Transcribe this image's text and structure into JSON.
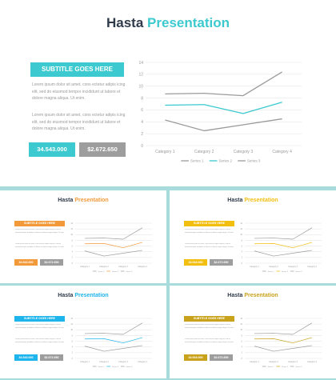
{
  "main": {
    "title_word1": "Hasta",
    "title_word2": "Presentation",
    "subtitle": "SUBTITLE GOES HERE",
    "paragraph1": "Lorem ipsum dolor sit amet, cons ectetur adipis icing elit, sed do eiusmod tempor incididunt ut labore et dolore magna aliqua. Ut enim.",
    "paragraph2": "Lorem ipsum dolor sit amet, cons ectetur adipis icing elit, sed do eiusmod tempor incididunt ut labore et dolore magna aliqua. Ut enim.",
    "stat1": "34.543.000",
    "stat2": "$2.672.650",
    "accent": "#3cc9cf"
  },
  "thumbs": [
    {
      "title_word1": "Hasta",
      "title_word2": "Presentation",
      "subtitle": "SUBTITLE GOES HERE",
      "stat1": "34.543.000",
      "stat2": "$2.672.650",
      "accent": "#f29a3a"
    },
    {
      "title_word1": "Hasta",
      "title_word2": "Presentation",
      "subtitle": "SUBTITLE GOES HERE",
      "stat1": "34.543.000",
      "stat2": "$2.672.650",
      "accent": "#f2be10"
    },
    {
      "title_word1": "Hasta",
      "title_word2": "Presentation",
      "subtitle": "SUBTITLE GOES HERE",
      "stat1": "34.543.000",
      "stat2": "$2.672.650",
      "accent": "#1eb4ec"
    },
    {
      "title_word1": "Hasta",
      "title_word2": "Presentation",
      "subtitle": "SUBTITLE GOES HERE",
      "stat1": "34.543.000",
      "stat2": "$2.672.650",
      "accent": "#c9a21c"
    }
  ],
  "chart_data": {
    "type": "line",
    "categories": [
      "Category 1",
      "Category 2",
      "Category 3",
      "Category 4"
    ],
    "y_ticks": [
      "0",
      "2",
      "4",
      "6",
      "8",
      "10",
      "12",
      "14"
    ],
    "ylim": [
      0,
      14
    ],
    "grid": true,
    "legend_position": "bottom",
    "series": [
      {
        "name": "Series 1",
        "values": [
          4.3,
          2.5,
          3.5,
          4.5
        ],
        "color": "#9a9a9a"
      },
      {
        "name": "Series 2",
        "values": [
          6.8,
          6.9,
          5.4,
          7.3
        ],
        "color": "accent"
      },
      {
        "name": "Series 3",
        "values": [
          8.7,
          8.8,
          8.4,
          12.4
        ],
        "color": "#9a9a9a"
      }
    ]
  }
}
